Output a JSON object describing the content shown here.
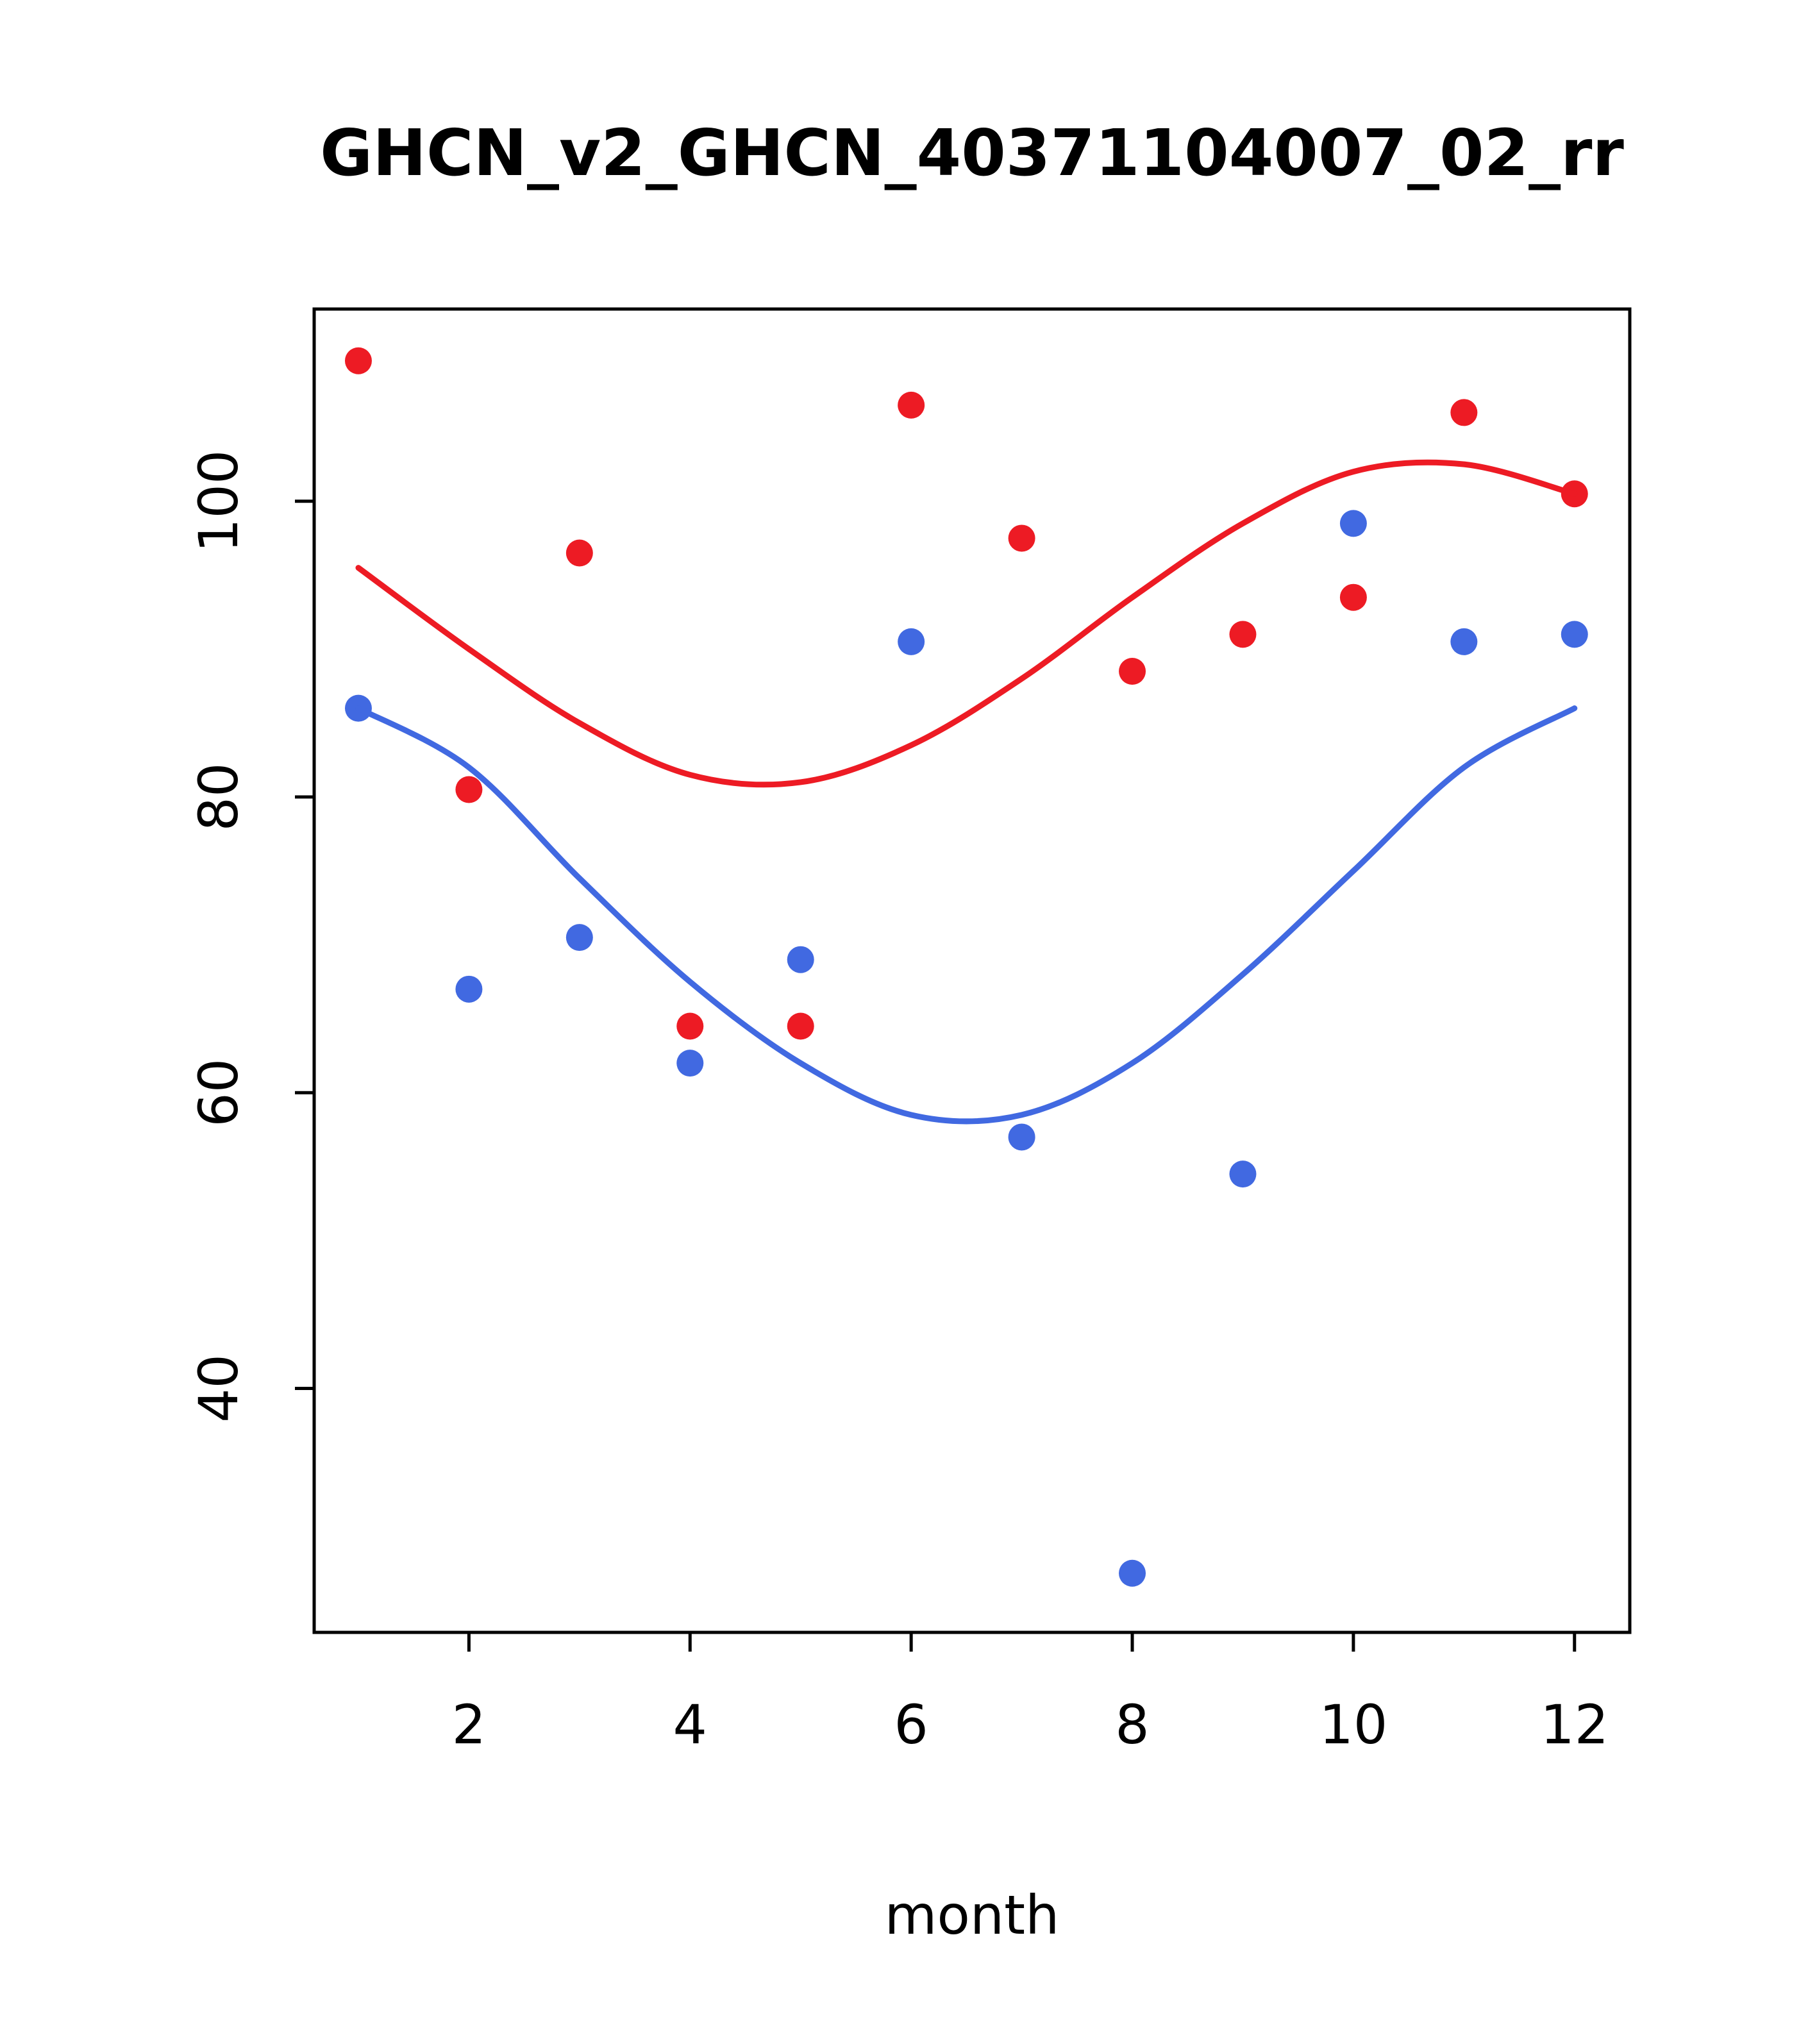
{
  "page": {
    "background": "#ffffff"
  },
  "chart_data": {
    "type": "scatter",
    "title": "GHCN_v2_GHCN_40371104007_02_rr",
    "xlabel": "month",
    "ylabel": "",
    "xlim": [
      0.6,
      12.5
    ],
    "ylim": [
      23.5,
      113
    ],
    "xticks": [
      2,
      4,
      6,
      8,
      10,
      12
    ],
    "yticks": [
      40,
      60,
      80,
      100
    ],
    "grid": false,
    "legend": "none",
    "colors": {
      "red": "#ed1b24",
      "blue": "#4169e1",
      "axis": "#000000"
    },
    "series": [
      {
        "name": "red-points",
        "kind": "points",
        "color": "#ed1b24",
        "x": [
          1,
          2,
          3,
          4,
          5,
          6,
          7,
          8,
          9,
          10,
          11,
          12
        ],
        "y": [
          109.5,
          80.5,
          96.5,
          64.5,
          64.5,
          106.5,
          97.5,
          88.5,
          91,
          93.5,
          106,
          100.5
        ]
      },
      {
        "name": "blue-points",
        "kind": "points",
        "color": "#4169e1",
        "x": [
          1,
          2,
          3,
          4,
          5,
          6,
          7,
          8,
          9,
          10,
          11,
          12
        ],
        "y": [
          86,
          67,
          70.5,
          62,
          69,
          90.5,
          57,
          27.5,
          54.5,
          98.5,
          90.5,
          91
        ]
      },
      {
        "name": "red-smooth-line",
        "kind": "line",
        "color": "#ed1b24",
        "x": [
          1,
          2,
          3,
          4,
          5,
          6,
          7,
          8,
          9,
          10,
          11,
          12
        ],
        "y": [
          95.5,
          90,
          85,
          81.5,
          81,
          83.5,
          88,
          93.5,
          98.5,
          102,
          102.5,
          100.5
        ]
      },
      {
        "name": "blue-smooth-line",
        "kind": "line",
        "color": "#4169e1",
        "x": [
          1,
          2,
          3,
          4,
          5,
          6,
          7,
          8,
          9,
          10,
          11,
          12
        ],
        "y": [
          86,
          82,
          74.5,
          67.5,
          62,
          58.5,
          58.5,
          62,
          68,
          75,
          82,
          86
        ]
      }
    ]
  }
}
